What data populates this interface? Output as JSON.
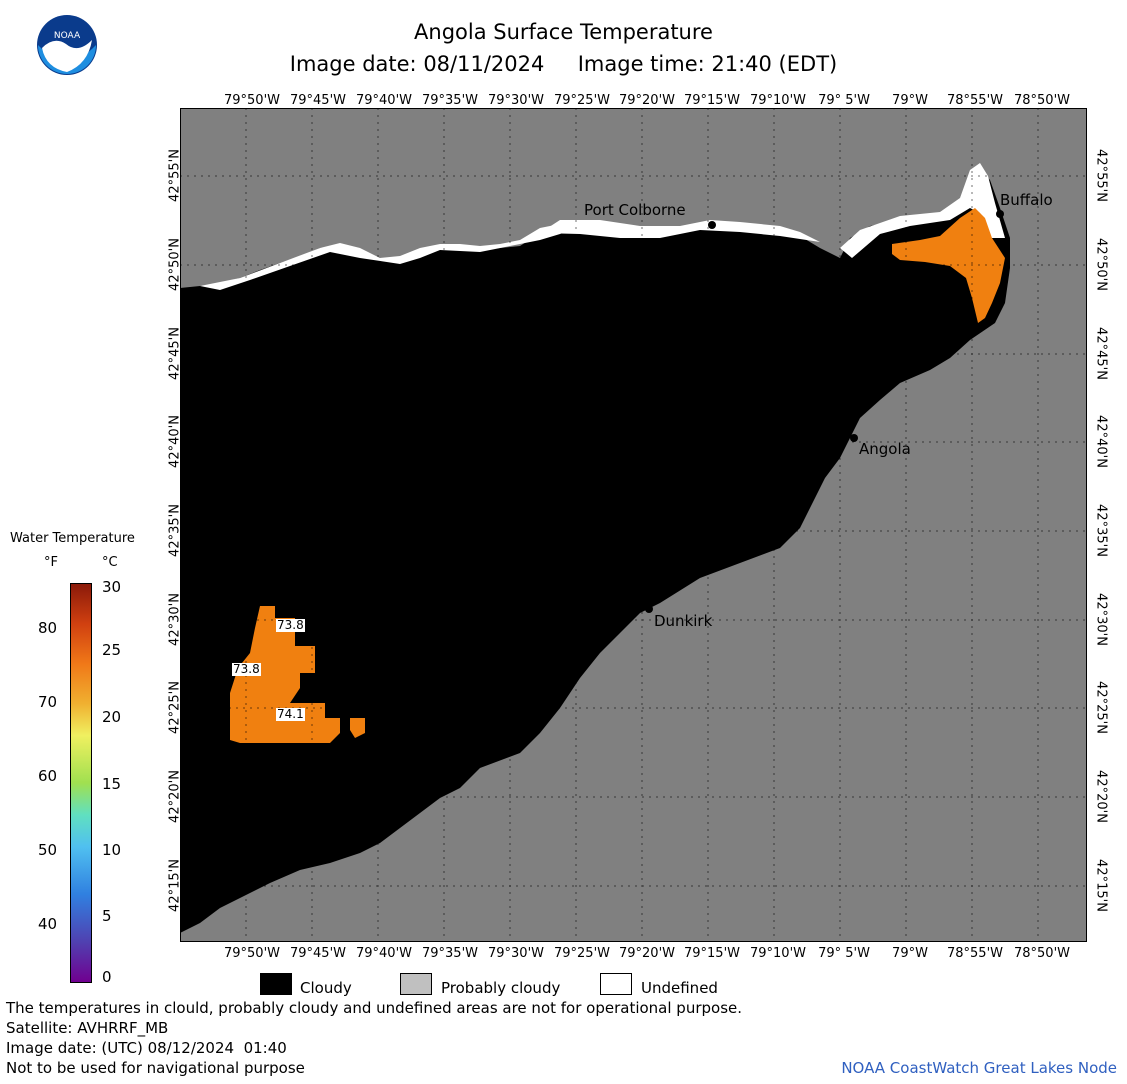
{
  "header": {
    "title": "Angola Surface Temperature",
    "subtitle": "Image date: 08/11/2024     Image time: 21:40 (EDT)"
  },
  "logo": {
    "text": "NOAA",
    "icon": "noaa-logo-icon"
  },
  "axes": {
    "lon_ticks": [
      "79°50'W",
      "79°45'W",
      "79°40'W",
      "79°35'W",
      "79°30'W",
      "79°25'W",
      "79°20'W",
      "79°15'W",
      "79°10'W",
      "79° 5'W",
      "79°W",
      "78°55'W",
      "78°50'W"
    ],
    "lat_ticks": [
      "42°55'N",
      "42°50'N",
      "42°45'N",
      "42°40'N",
      "42°35'N",
      "42°30'N",
      "42°25'N",
      "42°20'N",
      "42°15'N"
    ]
  },
  "cities": [
    {
      "name": "Port Colborne"
    },
    {
      "name": "Buffalo"
    },
    {
      "name": "Angola"
    },
    {
      "name": "Dunkirk"
    }
  ],
  "temp_labels": [
    "73.8",
    "73.8",
    "74.1"
  ],
  "colorbar": {
    "title": "Water Temperature",
    "unit_f": "°F",
    "unit_c": "°C",
    "f_ticks": [
      "80",
      "70",
      "60",
      "50",
      "40"
    ],
    "c_ticks": [
      "30",
      "25",
      "20",
      "15",
      "10",
      "5",
      "0"
    ]
  },
  "legend": [
    {
      "label": "Cloudy",
      "color": "#000000"
    },
    {
      "label": "Probably cloudy",
      "color": "#c0c0c0"
    },
    {
      "label": "Undefined",
      "color": "#ffffff"
    }
  ],
  "footer": {
    "line1": "The temperatures in clould, probably cloudy and undefined areas are not for operational purpose.",
    "line2": "Satellite: AVHRRF_MB",
    "line3": "Image date: (UTC) 08/12/2024  01:40",
    "line4": "Not to be used for navigational purpose",
    "credit": "NOAA CoastWatch Great Lakes Node"
  },
  "colors": {
    "land": "#808080",
    "cloudy": "#000000",
    "water": "#f08010",
    "credit": "#3060c0"
  }
}
